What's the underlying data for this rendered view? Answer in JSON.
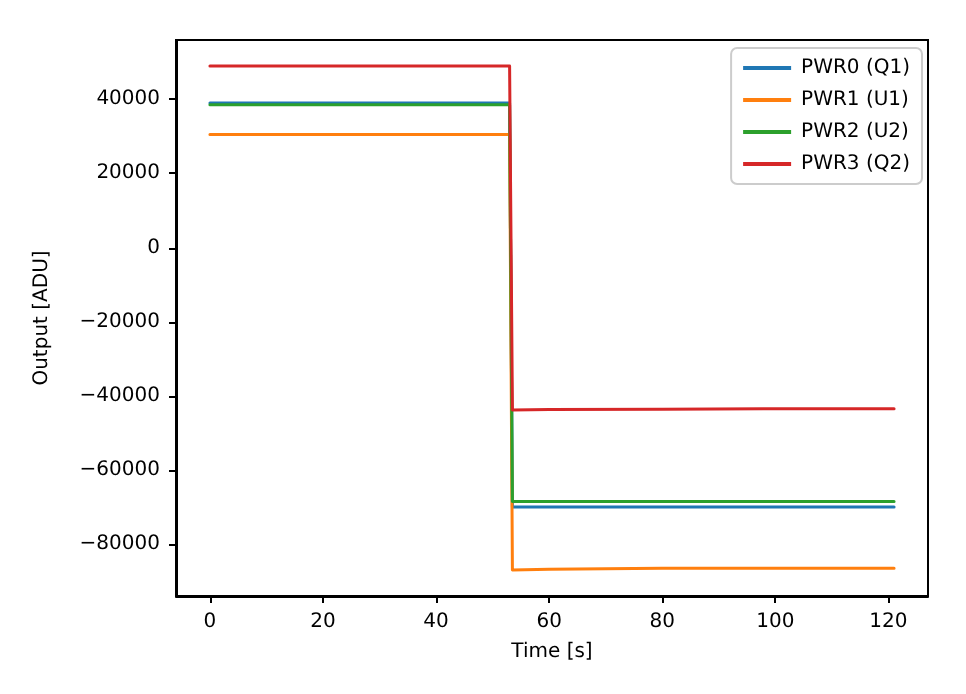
{
  "chart_data": {
    "type": "line",
    "xlabel": "Time [s]",
    "ylabel": "Output [ADU]",
    "x": [
      0,
      20,
      40,
      53,
      53.5,
      60,
      80,
      100,
      121
    ],
    "series": [
      {
        "name": "PWR0 (Q1)",
        "color": "#1f77b4",
        "values": [
          39000,
          39000,
          39000,
          39000,
          -70000,
          -70000,
          -70000,
          -70000,
          -70000
        ]
      },
      {
        "name": "PWR1 (U1)",
        "color": "#ff7f0e",
        "values": [
          30500,
          30500,
          30500,
          30500,
          -87000,
          -86800,
          -86500,
          -86500,
          -86500
        ]
      },
      {
        "name": "PWR2 (U2)",
        "color": "#2ca02c",
        "values": [
          38500,
          38500,
          38500,
          38500,
          -68500,
          -68500,
          -68500,
          -68500,
          -68500
        ]
      },
      {
        "name": "PWR3 (Q2)",
        "color": "#d62728",
        "values": [
          49000,
          49000,
          49000,
          49000,
          -43800,
          -43700,
          -43600,
          -43500,
          -43500
        ]
      }
    ],
    "xlim": [
      -6,
      127
    ],
    "xticks": [
      0,
      20,
      40,
      60,
      80,
      100,
      120
    ],
    "ylim": [
      -94000,
      56000
    ],
    "yticks": [
      -80000,
      -60000,
      -40000,
      -20000,
      0,
      20000,
      40000
    ],
    "grid": false,
    "legend": "top right",
    "marker": "none",
    "line_style": "solid"
  }
}
